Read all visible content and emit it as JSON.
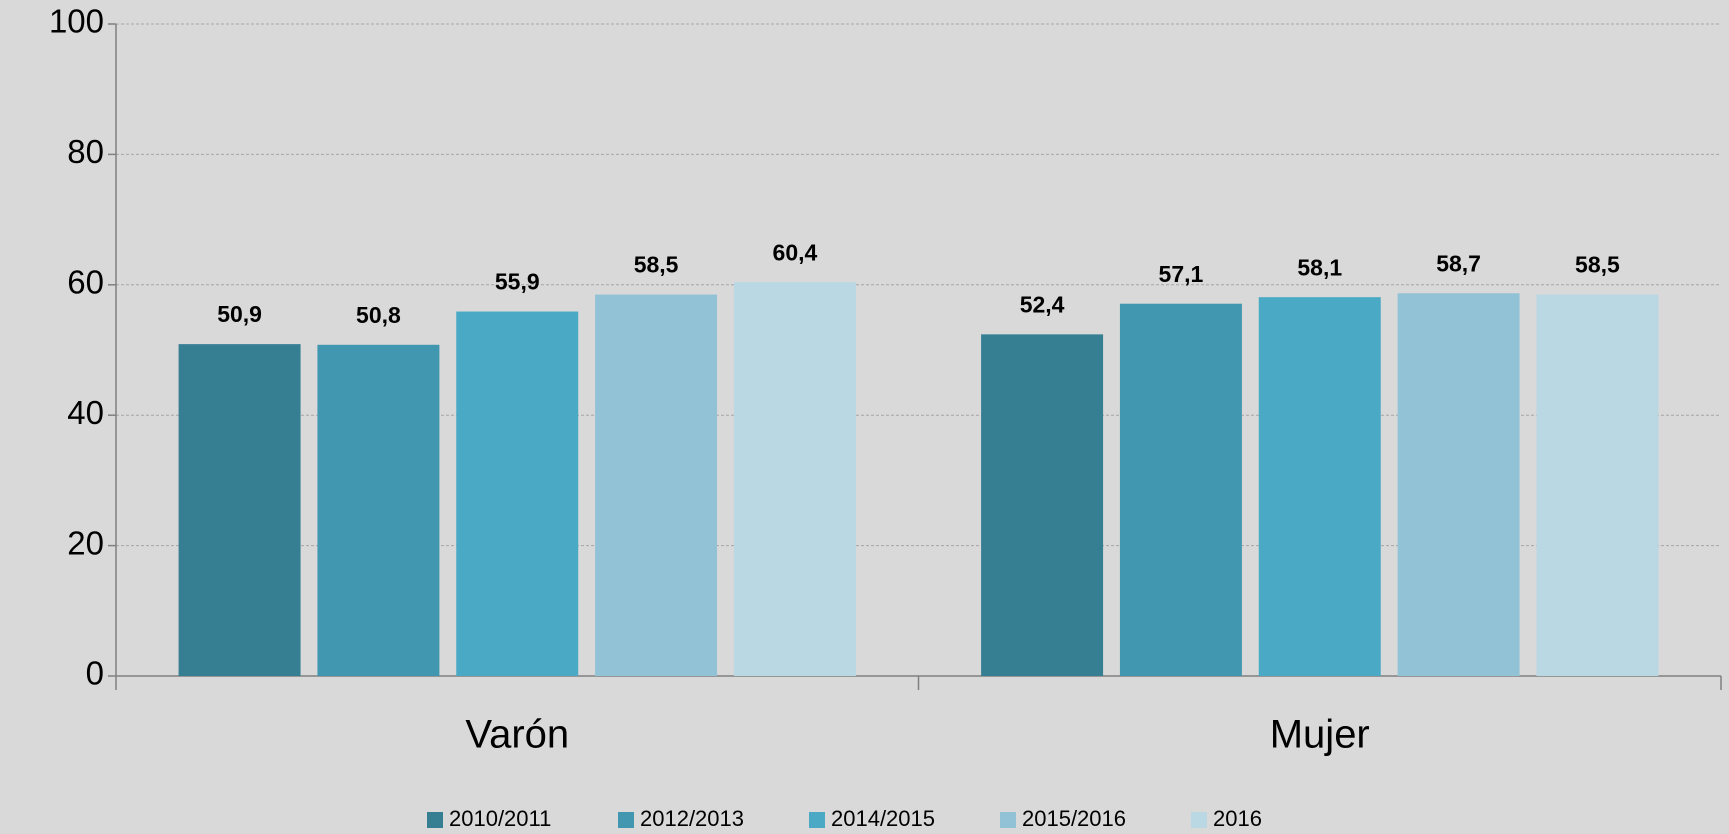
{
  "chart_data": {
    "type": "bar",
    "categories": [
      "Varón",
      "Mujer"
    ],
    "series": [
      {
        "name": "2010/2011",
        "color": "#367f93",
        "values": [
          50.9,
          52.4
        ],
        "value_labels": [
          "50,9",
          "52,4"
        ]
      },
      {
        "name": "2012/2013",
        "color": "#4297b0",
        "values": [
          50.8,
          57.1
        ],
        "value_labels": [
          "50,8",
          "57,1"
        ]
      },
      {
        "name": "2014/2015",
        "color": "#4aaac6",
        "values": [
          55.9,
          58.1
        ],
        "value_labels": [
          "55,9",
          "58,1"
        ]
      },
      {
        "name": "2015/2016",
        "color": "#92c2d5",
        "values": [
          58.5,
          58.7
        ],
        "value_labels": [
          "58,5",
          "58,7"
        ]
      },
      {
        "name": "2016",
        "color": "#bad8e4",
        "values": [
          60.4,
          58.5
        ],
        "value_labels": [
          "60,4",
          "58,5"
        ]
      }
    ],
    "ylim": [
      0,
      100
    ],
    "yticks": [
      0,
      20,
      40,
      60,
      80,
      100
    ],
    "grid": true,
    "legend": "bottom"
  }
}
